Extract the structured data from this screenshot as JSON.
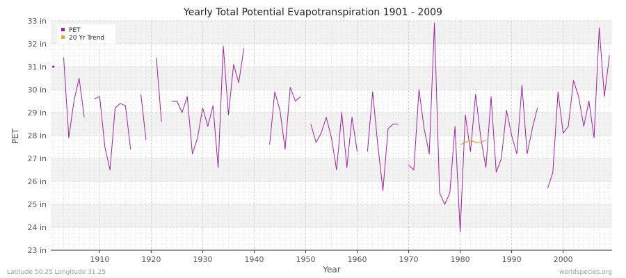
{
  "chart_data": {
    "type": "line",
    "title": "Yearly Total Potential Evapotranspiration 1901 - 2009",
    "xlabel": "Year",
    "ylabel": "PET",
    "xlim": [
      1901,
      2009
    ],
    "ylim": [
      23,
      33
    ],
    "x_ticks": [
      1910,
      1920,
      1930,
      1940,
      1950,
      1960,
      1970,
      1980,
      1990,
      2000
    ],
    "x_tick_labels": [
      "1910",
      "1920",
      "1930",
      "1940",
      "1950",
      "1960",
      "1970",
      "1980",
      "1990",
      "2000"
    ],
    "y_ticks": [
      23,
      24,
      25,
      26,
      27,
      28,
      29,
      30,
      31,
      32,
      33
    ],
    "y_tick_labels": [
      "23 in",
      "24 in",
      "25 in",
      "26 in",
      "27 in",
      "28 in",
      "29 in",
      "30 in",
      "31 in",
      "32 in",
      "33 in"
    ],
    "legend_position": "top-left",
    "grid": true,
    "series": [
      {
        "name": "PET",
        "color": "#a020a0",
        "x": [
          1901,
          1902,
          1903,
          1904,
          1905,
          1906,
          1907,
          1908,
          1909,
          1910,
          1911,
          1912,
          1913,
          1914,
          1915,
          1916,
          1917,
          1918,
          1919,
          1920,
          1921,
          1922,
          1923,
          1924,
          1925,
          1926,
          1927,
          1928,
          1929,
          1930,
          1931,
          1932,
          1933,
          1934,
          1935,
          1936,
          1937,
          1938,
          1939,
          1940,
          1941,
          1942,
          1943,
          1944,
          1945,
          1946,
          1947,
          1948,
          1949,
          1950,
          1951,
          1952,
          1953,
          1954,
          1955,
          1956,
          1957,
          1958,
          1959,
          1960,
          1961,
          1962,
          1963,
          1964,
          1965,
          1966,
          1967,
          1968,
          1969,
          1970,
          1971,
          1972,
          1973,
          1974,
          1975,
          1976,
          1977,
          1978,
          1979,
          1980,
          1981,
          1982,
          1983,
          1984,
          1985,
          1986,
          1987,
          1988,
          1989,
          1990,
          1991,
          1992,
          1993,
          1994,
          1995,
          1996,
          1997,
          1998,
          1999,
          2000,
          2001,
          2002,
          2003,
          2004,
          2005,
          2006,
          2007,
          2008,
          2009
        ],
        "values": [
          31.0,
          null,
          31.4,
          27.9,
          29.5,
          30.5,
          28.8,
          null,
          29.6,
          29.7,
          27.5,
          26.5,
          29.2,
          29.4,
          29.3,
          27.4,
          null,
          29.8,
          27.8,
          null,
          31.4,
          28.6,
          null,
          29.5,
          29.5,
          29.0,
          29.7,
          27.2,
          27.9,
          29.2,
          28.4,
          29.3,
          26.6,
          31.9,
          28.9,
          31.1,
          30.3,
          31.8,
          null,
          null,
          null,
          null,
          27.6,
          29.9,
          29.1,
          27.4,
          30.1,
          29.5,
          29.7,
          null,
          28.5,
          27.7,
          28.1,
          28.8,
          27.9,
          26.5,
          29.0,
          26.6,
          28.8,
          27.3,
          null,
          27.3,
          29.9,
          27.6,
          25.6,
          28.3,
          28.5,
          28.5,
          null,
          26.7,
          26.5,
          30.0,
          28.3,
          27.2,
          32.9,
          25.5,
          25.0,
          25.5,
          28.4,
          23.8,
          28.9,
          27.3,
          29.8,
          27.9,
          26.6,
          29.7,
          26.4,
          27.0,
          29.1,
          28.0,
          27.2,
          30.2,
          27.2,
          28.3,
          29.2,
          null,
          25.7,
          26.4,
          29.9,
          28.1,
          28.4,
          30.4,
          29.7,
          28.4,
          29.5,
          27.9,
          32.7,
          29.7,
          31.5
        ]
      },
      {
        "name": "20 Yr Trend",
        "color": "#f0a030",
        "x": [
          1980,
          1981,
          1982,
          1983,
          1984,
          1985
        ],
        "values": [
          27.6,
          27.7,
          27.8,
          27.7,
          27.7,
          27.8
        ]
      }
    ],
    "annotations": [
      "Latitude 50.25 Longitude 31.25",
      "worldspecies.org"
    ]
  }
}
